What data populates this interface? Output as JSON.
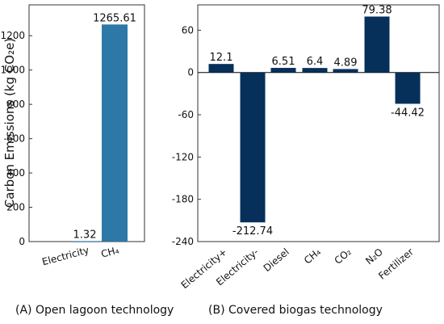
{
  "chart_data": [
    {
      "type": "bar",
      "caption": "(A) Open lagoon technology",
      "ylabel": "Carbon Emissions (kg CO₂e)",
      "categories": [
        "Electricity",
        "CH₄"
      ],
      "values": [
        1.32,
        1265.61
      ],
      "data_labels": [
        "1.32",
        "1265.61"
      ],
      "ylim": [
        0,
        1380
      ],
      "yticks": [
        0,
        200,
        400,
        600,
        800,
        1000,
        1200
      ],
      "bar_colors": [
        "#2e78a8",
        "#2e78a8"
      ],
      "grid": false
    },
    {
      "type": "bar",
      "caption": "(B) Covered biogas technology",
      "categories": [
        "Electricity+",
        "Electricity-",
        "Diesel",
        "CH₄",
        "CO₂",
        "N₂O",
        "Fertilizer"
      ],
      "values": [
        12.1,
        -212.74,
        6.51,
        6.4,
        4.89,
        79.38,
        -44.42
      ],
      "data_labels": [
        "12.1",
        "-212.74",
        "6.51",
        "6.4",
        "4.89",
        "79.38",
        "-44.42"
      ],
      "ylim": [
        -240,
        96
      ],
      "yticks": [
        -240,
        -180,
        -120,
        -60,
        0,
        60
      ],
      "bar_colors": [
        "#06305a",
        "#06305a",
        "#06305a",
        "#06305a",
        "#06305a",
        "#06305a",
        "#06305a"
      ],
      "zero_line": true,
      "grid": false
    }
  ]
}
